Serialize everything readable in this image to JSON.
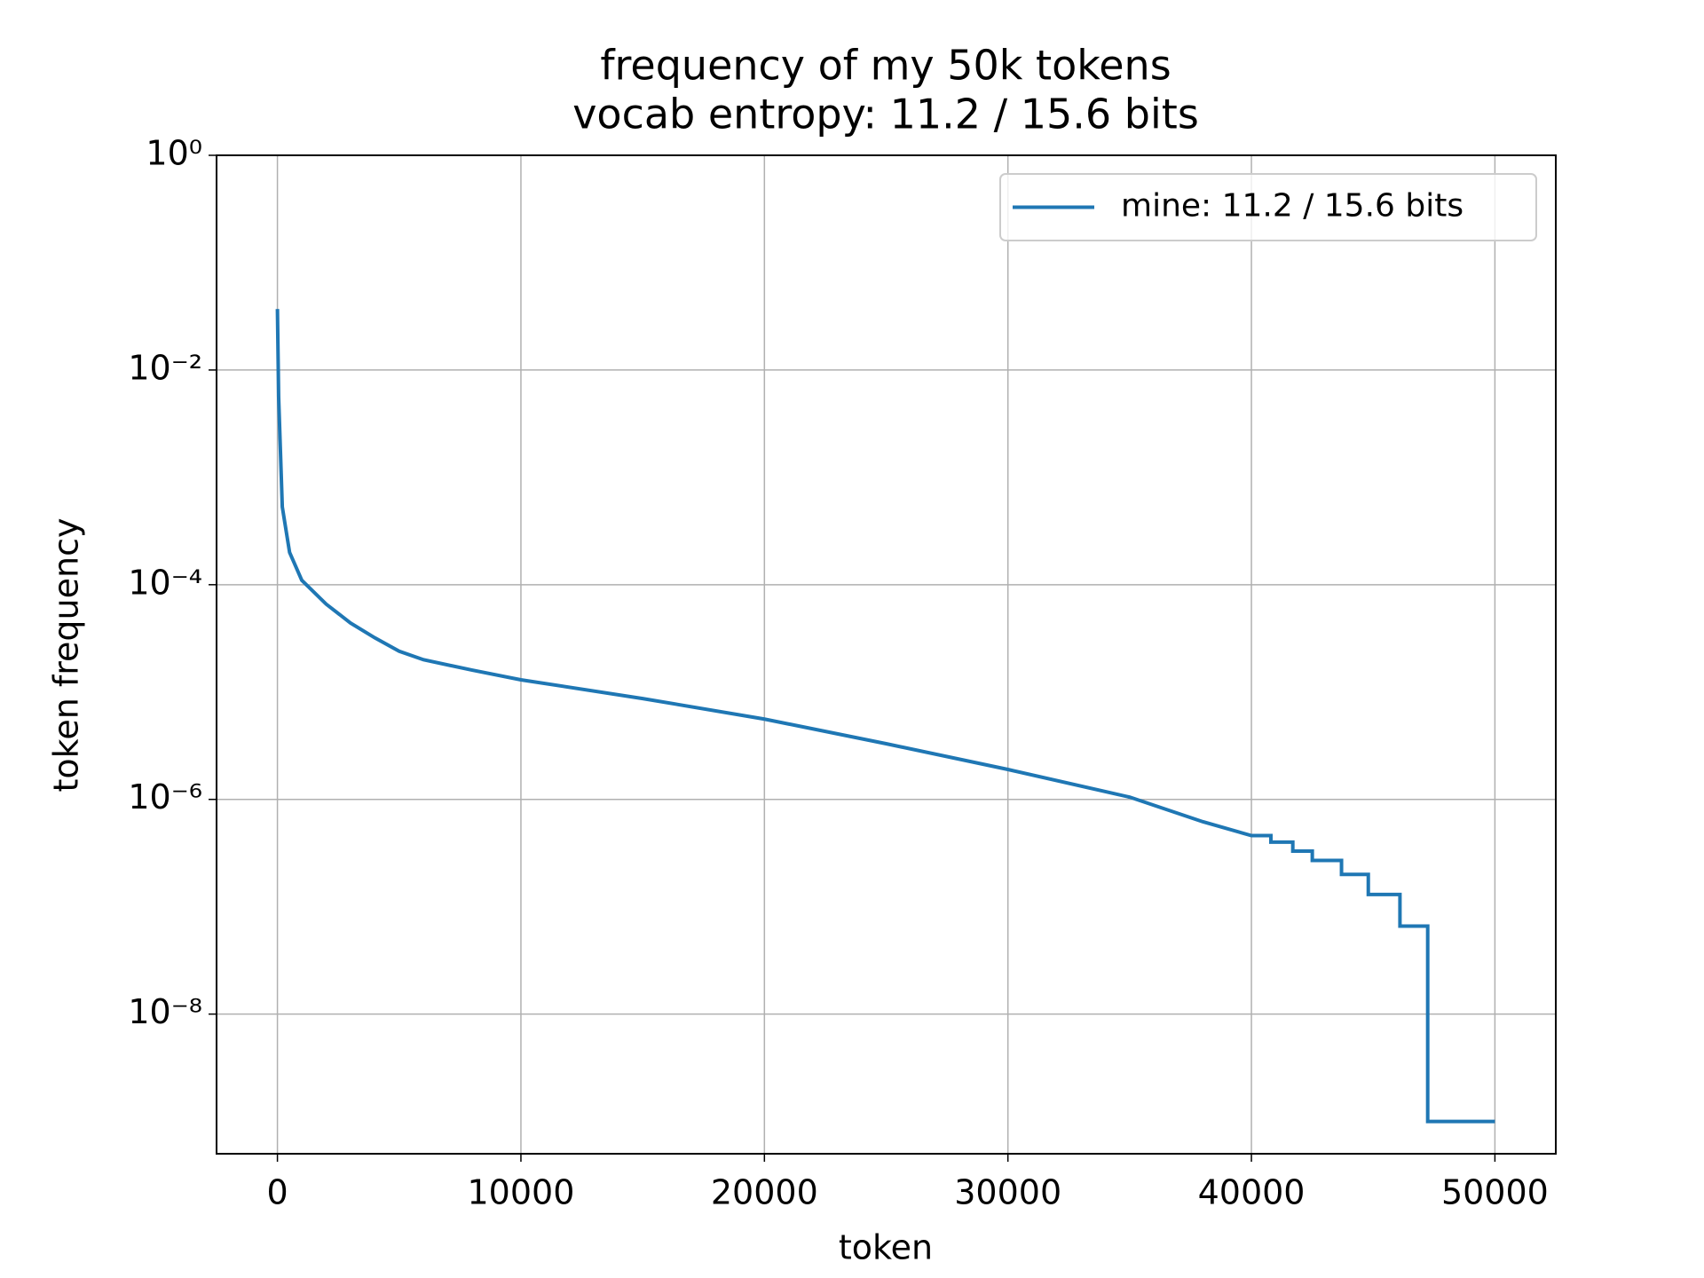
{
  "chart_data": {
    "type": "line",
    "title": [
      "frequency of my 50k tokens",
      "vocab entropy: 11.2 / 15.6 bits"
    ],
    "xlabel": "token",
    "ylabel": "token frequency",
    "x": [
      0,
      50,
      200,
      500,
      1000,
      2000,
      3000,
      4000,
      5000,
      6000,
      8000,
      10000,
      15000,
      20000,
      25000,
      30000,
      35000,
      38000,
      40000,
      40800,
      40800,
      41700,
      41700,
      42500,
      42500,
      43700,
      43700,
      44800,
      44800,
      46100,
      46100,
      47240,
      47240,
      50000
    ],
    "series": [
      {
        "name": "mine: 11.2 / 15.6 bits",
        "color": "#1f77b4",
        "values": [
          0.037,
          0.0056,
          0.00053,
          0.0002,
          0.00011,
          6.6e-05,
          4.4e-05,
          3.2e-05,
          2.4e-05,
          2e-05,
          1.6e-05,
          1.3e-05,
          8.7e-06,
          5.6e-06,
          3.3e-06,
          1.9e-06,
          1.05e-06,
          6.2e-07,
          4.6e-07,
          4.6e-07,
          4e-07,
          4e-07,
          3.3e-07,
          3.3e-07,
          2.7e-07,
          2.7e-07,
          2e-07,
          2e-07,
          1.3e-07,
          1.3e-07,
          6.6e-08,
          6.6e-08,
          1e-09,
          1e-09
        ]
      }
    ],
    "xlim": [
      -2500,
      52500
    ],
    "xticks": [
      0,
      10000,
      20000,
      30000,
      40000,
      50000
    ],
    "ylim": [
      5e-10,
      1
    ],
    "yscale": "log",
    "yticks": [
      {
        "value": 1,
        "label": "10⁰"
      },
      {
        "value": 0.01,
        "label": "10⁻²"
      },
      {
        "value": 0.0001,
        "label": "10⁻⁴"
      },
      {
        "value": 1e-06,
        "label": "10⁻⁶"
      },
      {
        "value": 1e-08,
        "label": "10⁻⁸"
      }
    ],
    "grid": true,
    "legend": "upper right"
  }
}
